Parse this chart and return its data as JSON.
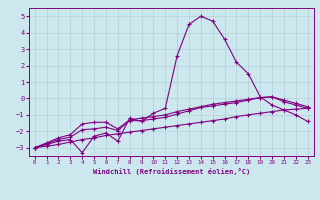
{
  "xlabel": "Windchill (Refroidissement éolien,°C)",
  "background_color": "#cce8ee",
  "line_color": "#800080",
  "grid_color": "#b0d0d8",
  "xlim": [
    -0.5,
    23.5
  ],
  "ylim": [
    -3.5,
    5.5
  ],
  "xticks": [
    0,
    1,
    2,
    3,
    4,
    5,
    6,
    7,
    8,
    9,
    10,
    11,
    12,
    13,
    14,
    15,
    16,
    17,
    18,
    19,
    20,
    21,
    22,
    23
  ],
  "yticks": [
    -3,
    -2,
    -1,
    0,
    1,
    2,
    3,
    4,
    5
  ],
  "line1_x": [
    0,
    1,
    2,
    3,
    4,
    5,
    6,
    7,
    8,
    9,
    10,
    11,
    12,
    13,
    14,
    15,
    16,
    17,
    18,
    19,
    20,
    21,
    22,
    23
  ],
  "line1_y": [
    -3.0,
    -2.8,
    -2.6,
    -2.5,
    -3.3,
    -2.3,
    -2.1,
    -2.6,
    -1.2,
    -1.4,
    -0.9,
    -0.6,
    2.6,
    4.5,
    5.0,
    4.7,
    3.6,
    2.2,
    1.5,
    0.1,
    -0.4,
    -0.7,
    -1.0,
    -1.4
  ],
  "line2_x": [
    0,
    1,
    2,
    3,
    4,
    5,
    6,
    7,
    8,
    9,
    10,
    11,
    12,
    13,
    14,
    15,
    16,
    17,
    18,
    19,
    20,
    21,
    22,
    23
  ],
  "line2_y": [
    -3.0,
    -2.75,
    -2.5,
    -2.35,
    -1.9,
    -1.85,
    -1.75,
    -1.95,
    -1.35,
    -1.35,
    -1.25,
    -1.15,
    -0.95,
    -0.75,
    -0.55,
    -0.45,
    -0.35,
    -0.25,
    -0.1,
    0.05,
    0.1,
    -0.2,
    -0.4,
    -0.6
  ],
  "line3_x": [
    0,
    1,
    2,
    3,
    4,
    5,
    6,
    7,
    8,
    9,
    10,
    11,
    12,
    13,
    14,
    15,
    16,
    17,
    18,
    19,
    20,
    21,
    22,
    23
  ],
  "line3_y": [
    -3.0,
    -2.7,
    -2.4,
    -2.2,
    -1.55,
    -1.45,
    -1.45,
    -1.85,
    -1.3,
    -1.2,
    -1.1,
    -1.0,
    -0.8,
    -0.65,
    -0.5,
    -0.35,
    -0.25,
    -0.15,
    -0.05,
    0.05,
    0.1,
    -0.1,
    -0.3,
    -0.5
  ],
  "line4_x": [
    0,
    1,
    2,
    3,
    4,
    5,
    6,
    7,
    8,
    9,
    10,
    11,
    12,
    13,
    14,
    15,
    16,
    17,
    18,
    19,
    20,
    21,
    22,
    23
  ],
  "line4_y": [
    -3.0,
    -2.9,
    -2.8,
    -2.65,
    -2.5,
    -2.4,
    -2.25,
    -2.15,
    -2.05,
    -1.95,
    -1.85,
    -1.75,
    -1.65,
    -1.55,
    -1.45,
    -1.35,
    -1.25,
    -1.1,
    -1.0,
    -0.9,
    -0.8,
    -0.7,
    -0.65,
    -0.6
  ]
}
